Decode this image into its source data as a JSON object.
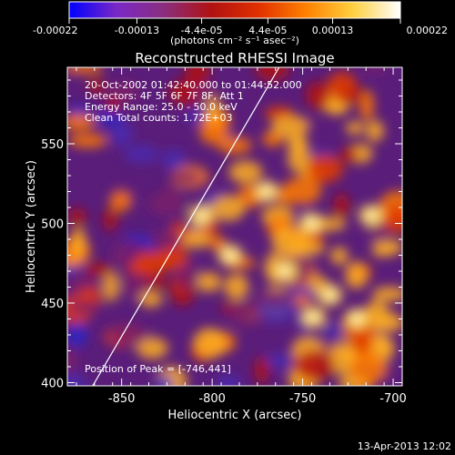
{
  "colorbar": {
    "tick_labels": [
      "-0.00022",
      "-0.00013",
      "-4.4e-05",
      "4.4e-05",
      "0.00013",
      "0.00022"
    ],
    "tick_values": [
      -0.00022,
      -0.00013,
      -4.4e-05,
      4.4e-05,
      0.00013,
      0.00022
    ],
    "range": [
      -0.00022,
      0.00022
    ],
    "unit_label": "(photons cm⁻² s⁻¹ asec⁻²)",
    "colors": [
      "#0000ff",
      "#7a28c6",
      "#8a2e7e",
      "#b01212",
      "#e03000",
      "#ff8000",
      "#ffd040",
      "#ffffff"
    ]
  },
  "chart_data": {
    "type": "heatmap",
    "title": "Reconstructed RHESSI Image",
    "xlabel": "Heliocentric X (arcsec)",
    "ylabel": "Heliocentric Y (arcsec)",
    "xlim": [
      -880,
      -695
    ],
    "ylim": [
      398,
      598
    ],
    "x_ticks": [
      {
        "value": -850,
        "label": "-850"
      },
      {
        "value": -800,
        "label": "-800"
      },
      {
        "value": -750,
        "label": "-750"
      },
      {
        "value": -700,
        "label": "-700"
      }
    ],
    "y_ticks": [
      {
        "value": 400,
        "label": "400"
      },
      {
        "value": 450,
        "label": "450"
      },
      {
        "value": 500,
        "label": "500"
      },
      {
        "value": 550,
        "label": "550"
      }
    ],
    "annotations": [
      "20-Oct-2002 01:42:40.000 to 01:44:52.000",
      "Detectors: 4F 5F 6F 7F 8F, Att 1",
      "Energy Range: 25.0 - 50.0 keV",
      "Clean    Total counts: 1.72E+03"
    ],
    "peak_label": "Position of Peak = [-746,441]",
    "peak": {
      "x": -746,
      "y": 441
    },
    "limb_line": [
      {
        "x": -866,
        "y": 398
      },
      {
        "x": -763,
        "y": 598
      }
    ],
    "grid": false
  },
  "footer": {
    "timestamp": "13-Apr-2013 12:02"
  }
}
